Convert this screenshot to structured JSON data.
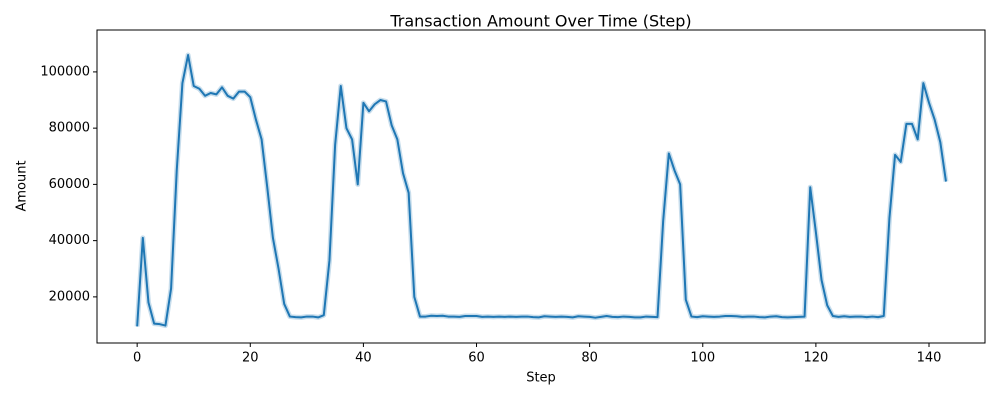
{
  "chart_data": {
    "type": "line",
    "title": "Transaction Amount Over Time (Step)",
    "xlabel": "Step",
    "ylabel": "Amount",
    "x": [
      0,
      1,
      2,
      3,
      4,
      5,
      6,
      7,
      8,
      9,
      10,
      11,
      12,
      13,
      14,
      15,
      16,
      17,
      18,
      19,
      20,
      21,
      22,
      23,
      24,
      25,
      26,
      27,
      28,
      29,
      30,
      31,
      32,
      33,
      34,
      35,
      36,
      37,
      38,
      39,
      40,
      41,
      42,
      43,
      44,
      45,
      46,
      47,
      48,
      49,
      50,
      51,
      52,
      53,
      54,
      55,
      56,
      57,
      58,
      59,
      60,
      61,
      62,
      63,
      64,
      65,
      66,
      67,
      68,
      69,
      70,
      71,
      72,
      73,
      74,
      75,
      76,
      77,
      78,
      79,
      80,
      81,
      82,
      83,
      84,
      85,
      86,
      87,
      88,
      89,
      90,
      91,
      92,
      93,
      94,
      95,
      96,
      97,
      98,
      99,
      100,
      101,
      102,
      103,
      104,
      105,
      106,
      107,
      108,
      109,
      110,
      111,
      112,
      113,
      114,
      115,
      116,
      117,
      118,
      119,
      120,
      121,
      122,
      123,
      124,
      125,
      126,
      127,
      128,
      129,
      130,
      131,
      132,
      133,
      134,
      135,
      136,
      137,
      138,
      139,
      140,
      141,
      142,
      143
    ],
    "series": [
      {
        "color": "#1f77b4",
        "values": [
          9500,
          41000,
          18000,
          10500,
          10300,
          9800,
          23000,
          65000,
          96000,
          106000,
          95000,
          94000,
          91500,
          92500,
          92000,
          94500,
          91500,
          90500,
          93000,
          93000,
          91000,
          83000,
          76000,
          59000,
          41000,
          30000,
          17500,
          13000,
          12800,
          12700,
          13000,
          13000,
          12700,
          13500,
          33000,
          74000,
          95000,
          80000,
          76000,
          60000,
          89000,
          86000,
          88500,
          90000,
          89500,
          81000,
          76000,
          64000,
          57000,
          20000,
          13000,
          13000,
          13300,
          13200,
          13300,
          13000,
          13000,
          12900,
          13200,
          13200,
          13200,
          12900,
          13000,
          12900,
          13000,
          12900,
          13000,
          12900,
          13000,
          13000,
          12800,
          12700,
          13100,
          13000,
          12900,
          13000,
          12900,
          12700,
          13100,
          13000,
          12900,
          12600,
          12900,
          13200,
          12900,
          12800,
          13000,
          12900,
          12700,
          12700,
          13000,
          12900,
          12800,
          47000,
          71000,
          65000,
          60000,
          19000,
          13000,
          12800,
          13100,
          13000,
          12900,
          13000,
          13200,
          13200,
          13100,
          12900,
          13000,
          13000,
          12800,
          12700,
          13000,
          13100,
          12800,
          12700,
          12800,
          12900,
          13000,
          59000,
          43000,
          26000,
          17000,
          13200,
          12900,
          13100,
          12900,
          13000,
          13000,
          12800,
          13000,
          12800,
          13200,
          48000,
          70500,
          68000,
          81500,
          81500,
          76000,
          96000,
          89000,
          83000,
          75000,
          61000
        ]
      }
    ],
    "xlim": [
      -7.1,
      149.9
    ],
    "ylim": [
      3600,
      114900
    ],
    "xticks": [
      0,
      20,
      40,
      60,
      80,
      100,
      120,
      140
    ],
    "yticks": [
      20000,
      40000,
      60000,
      80000,
      100000
    ]
  }
}
